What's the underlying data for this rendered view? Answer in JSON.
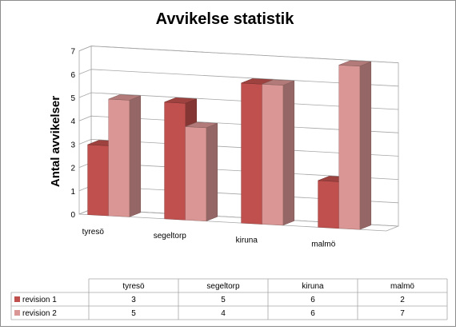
{
  "chart_data": {
    "type": "bar",
    "title": "Avvikelse statistik",
    "ylabel": "Antal avvikelser",
    "xlabel": "",
    "categories": [
      "tyresö",
      "segeltorp",
      "kiruna",
      "malmö"
    ],
    "series": [
      {
        "name": "revision 1",
        "values": [
          3,
          5,
          6,
          2
        ],
        "color": "#c0504d"
      },
      {
        "name": "revision 2",
        "values": [
          5,
          4,
          6,
          7
        ],
        "color": "#d99694"
      }
    ],
    "ylim": [
      0,
      7
    ],
    "yticks": [
      "0",
      "1",
      "2",
      "3",
      "4",
      "5",
      "6",
      "7"
    ],
    "grid": true,
    "legend": "data-table-bottom",
    "data_table": true
  }
}
